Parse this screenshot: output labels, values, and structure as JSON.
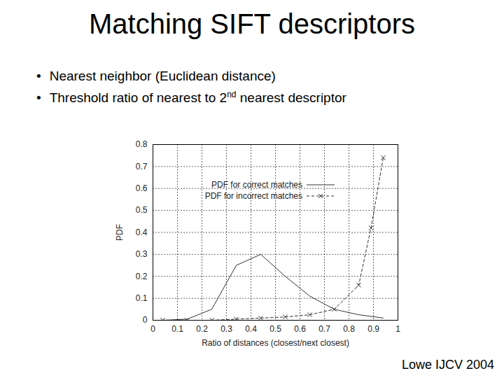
{
  "slide": {
    "title": "Matching SIFT descriptors",
    "bullets": [
      [
        {
          "text": "Nearest neighbor (Euclidean distance)"
        }
      ],
      [
        {
          "text": "Threshold ratio of nearest to 2"
        },
        {
          "text": "nd",
          "sup": true
        },
        {
          "text": " nearest descriptor"
        }
      ]
    ],
    "source": "Lowe IJCV 2004"
  },
  "chart_data": {
    "type": "line",
    "x_label": "Ratio of distances (closest/next closest)",
    "y_label": "PDF",
    "series": [
      {
        "name": "PDF for correct matches",
        "color": "#333333",
        "marker": "none",
        "line_style": "solid",
        "x": [
          0.04,
          0.14,
          0.24,
          0.34,
          0.44,
          0.54,
          0.64,
          0.74,
          0.84,
          0.94
        ],
        "values": [
          0,
          0.005,
          0.05,
          0.25,
          0.3,
          0.2,
          0.11,
          0.05,
          0.025,
          0.01
        ]
      },
      {
        "name": "PDF for incorrect matches",
        "color": "#333333",
        "marker": "x",
        "line_style": "dashed",
        "x": [
          0.04,
          0.14,
          0.24,
          0.34,
          0.44,
          0.54,
          0.64,
          0.74,
          0.84,
          0.89,
          0.94
        ],
        "values": [
          0,
          0,
          0,
          0.005,
          0.01,
          0.015,
          0.025,
          0.05,
          0.16,
          0.42,
          0.74
        ]
      }
    ],
    "xlim": [
      0,
      1
    ],
    "xticks": [
      0,
      0.1,
      0.2,
      0.3,
      0.4,
      0.5,
      0.6,
      0.7,
      0.8,
      0.9,
      1
    ],
    "ylim": [
      0,
      0.8
    ],
    "yticks": [
      0,
      0.1,
      0.2,
      0.3,
      0.4,
      0.5,
      0.6,
      0.7,
      0.8
    ],
    "grid": true,
    "legend": "top"
  }
}
